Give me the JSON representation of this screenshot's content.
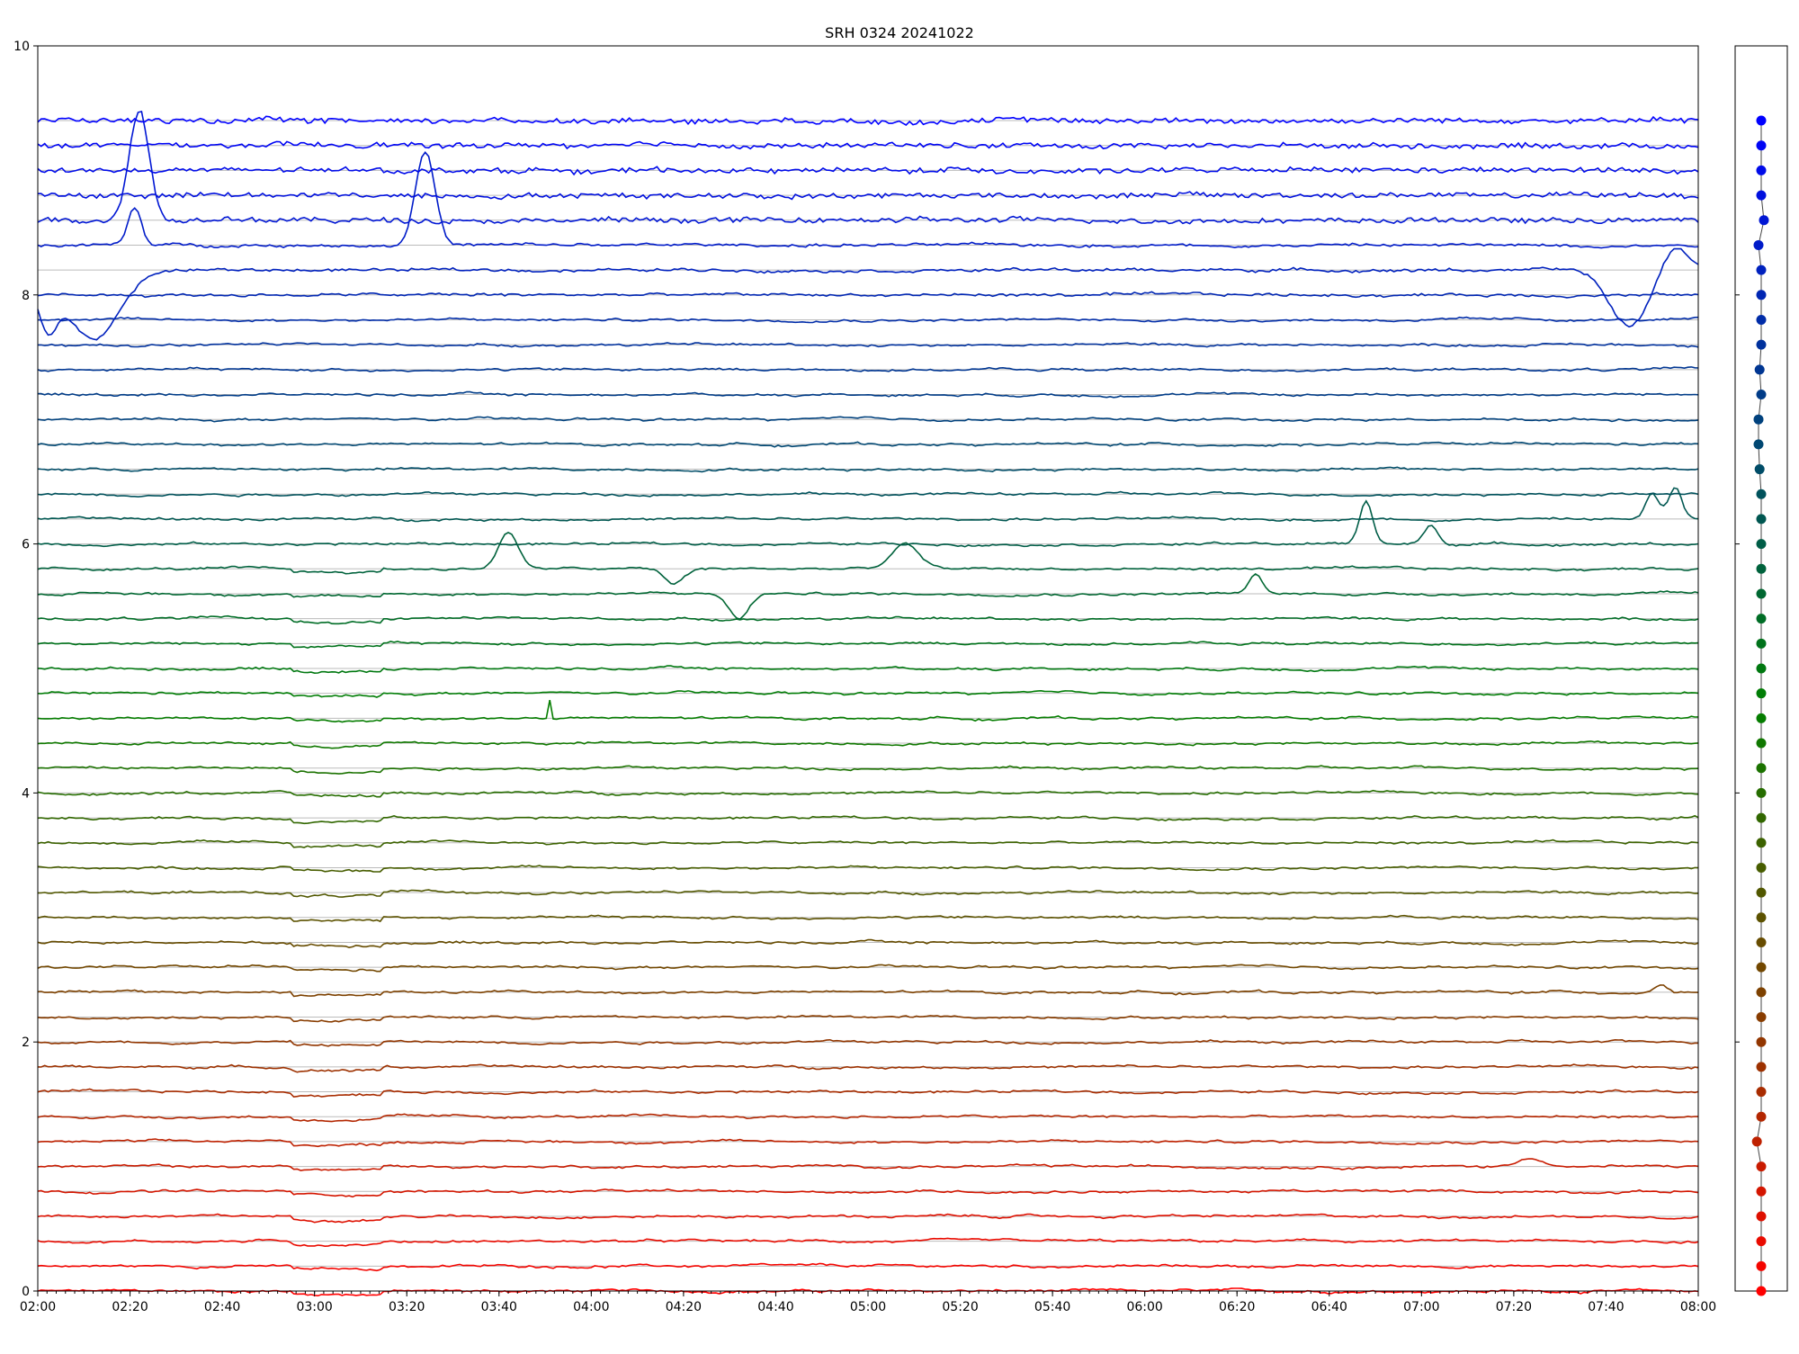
{
  "chart_data": {
    "type": "line",
    "title": "SRH 0324 20241022",
    "xlabel": "",
    "ylabel": "",
    "ylim": [
      0,
      10
    ],
    "xlim": [
      "02:00",
      "08:00"
    ],
    "yticks": [
      "0",
      "2",
      "4",
      "6",
      "8",
      "10"
    ],
    "xticks": [
      "02:00",
      "02:20",
      "02:40",
      "03:00",
      "03:20",
      "03:40",
      "04:00",
      "04:20",
      "04:40",
      "05:00",
      "05:20",
      "05:40",
      "06:00",
      "06:20",
      "06:40",
      "07:00",
      "07:20",
      "07:40",
      "08:00"
    ],
    "grid": "horizontal baselines",
    "n_traces": 48,
    "trace_spacing": 0.2,
    "color_gradient": {
      "bottom": "#ff0000",
      "middle": "#008000",
      "top": "#0000ff"
    },
    "baselines": [
      0.0,
      0.2,
      0.4,
      0.6,
      0.8,
      1.0,
      1.2,
      1.4,
      1.6,
      1.8,
      2.0,
      2.2,
      2.4,
      2.6,
      2.8,
      3.0,
      3.2,
      3.4,
      3.6,
      3.8,
      4.0,
      4.2,
      4.4,
      4.6,
      4.8,
      5.0,
      5.2,
      5.4,
      5.6,
      5.8,
      6.0,
      6.2,
      6.4,
      6.6,
      6.8,
      7.0,
      7.2,
      7.4,
      7.6,
      7.8,
      8.0,
      8.2,
      8.4,
      8.6,
      8.8,
      9.0,
      9.2,
      9.4
    ],
    "side_panel": {
      "markers_y": [
        0.0,
        0.2,
        0.4,
        0.6,
        0.8,
        1.0,
        1.2,
        1.4,
        1.6,
        1.8,
        2.0,
        2.2,
        2.4,
        2.6,
        2.8,
        3.0,
        3.2,
        3.4,
        3.6,
        3.8,
        4.0,
        4.2,
        4.4,
        4.6,
        4.8,
        5.0,
        5.2,
        5.4,
        5.6,
        5.8,
        6.0,
        6.2,
        6.4,
        6.6,
        6.8,
        7.0,
        7.2,
        7.4,
        7.6,
        7.8,
        8.0,
        8.2,
        8.4,
        8.6,
        8.8,
        9.0,
        9.2,
        9.4
      ],
      "markers_offset": [
        0,
        0,
        0,
        0,
        0,
        0,
        -0.8,
        0,
        0,
        0,
        0,
        0,
        0,
        0,
        0,
        0,
        0,
        0,
        0,
        0,
        0,
        0,
        0,
        0,
        0,
        0,
        0,
        0,
        0,
        0,
        0,
        0,
        0,
        -0.3,
        -0.5,
        -0.5,
        0,
        -0.3,
        0,
        0,
        0,
        0,
        -0.5,
        0.5,
        0,
        0,
        0,
        0
      ]
    },
    "events": [
      {
        "trace": 43,
        "t": "02:22",
        "amp": 0.9,
        "width_min": 3
      },
      {
        "trace": 42,
        "t": "03:24",
        "amp": 0.75,
        "width_min": 3
      },
      {
        "trace": 42,
        "t": "02:21",
        "amp": 0.3,
        "width_min": 2
      },
      {
        "trace": 41,
        "t": "02:12",
        "amp": -0.55,
        "width_min": 8
      },
      {
        "trace": 41,
        "t": "02:02",
        "amp": -0.4,
        "width_min": 3
      },
      {
        "trace": 41,
        "t": "07:45",
        "amp": -0.45,
        "width_min": 6
      },
      {
        "trace": 41,
        "t": "07:55",
        "amp": 0.2,
        "width_min": 4
      },
      {
        "trace": 31,
        "t": "07:55",
        "amp": 0.25,
        "width_min": 2
      },
      {
        "trace": 31,
        "t": "07:50",
        "amp": 0.2,
        "width_min": 2
      },
      {
        "trace": 30,
        "t": "06:48",
        "amp": 0.35,
        "width_min": 2
      },
      {
        "trace": 30,
        "t": "07:02",
        "amp": 0.15,
        "width_min": 2
      },
      {
        "trace": 29,
        "t": "03:42",
        "amp": 0.3,
        "width_min": 3
      },
      {
        "trace": 29,
        "t": "05:08",
        "amp": 0.2,
        "width_min": 4
      },
      {
        "trace": 29,
        "t": "04:18",
        "amp": -0.12,
        "width_min": 3
      },
      {
        "trace": 28,
        "t": "06:24",
        "amp": 0.15,
        "width_min": 2
      },
      {
        "trace": 28,
        "t": "04:32",
        "amp": -0.2,
        "width_min": 3
      },
      {
        "trace": 23,
        "t": "03:51",
        "amp": 0.15,
        "width_min": 0.4
      },
      {
        "trace": 5,
        "t": "07:24",
        "amp": 0.07,
        "width_min": 4
      },
      {
        "trace": 12,
        "t": "07:52",
        "amp": 0.07,
        "width_min": 2
      }
    ]
  }
}
